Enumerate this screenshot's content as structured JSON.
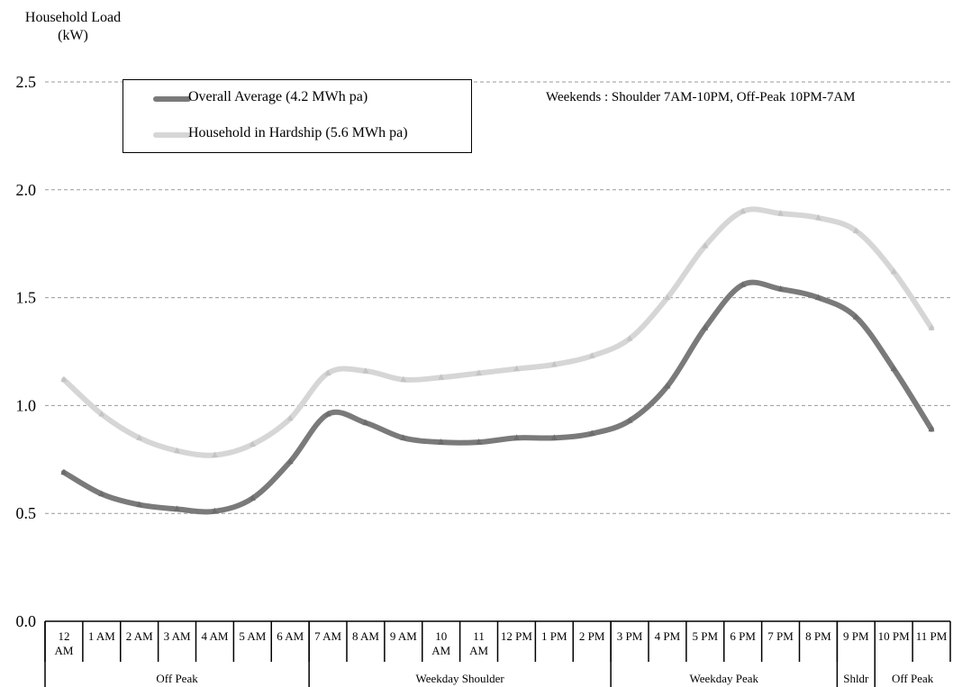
{
  "chart_data": {
    "type": "line",
    "ylabel_line1": "Household Load",
    "ylabel_line2": "(kW)",
    "ylim": [
      0,
      2.5
    ],
    "yticks": [
      "0.0",
      "0.5",
      "1.0",
      "1.5",
      "2.0",
      "2.5"
    ],
    "ytick_values": [
      0,
      0.5,
      1.0,
      1.5,
      2.0,
      2.5
    ],
    "grid": "horizontal dashed",
    "categories": [
      [
        "12",
        "AM"
      ],
      [
        "1 AM"
      ],
      [
        "2 AM"
      ],
      [
        "3 AM"
      ],
      [
        "4 AM"
      ],
      [
        "5 AM"
      ],
      [
        "6 AM"
      ],
      [
        "7 AM"
      ],
      [
        "8 AM"
      ],
      [
        "9 AM"
      ],
      [
        "10",
        "AM"
      ],
      [
        "11",
        "AM"
      ],
      [
        "12 PM"
      ],
      [
        "1 PM"
      ],
      [
        "2 PM"
      ],
      [
        "3 PM"
      ],
      [
        "4 PM"
      ],
      [
        "5 PM"
      ],
      [
        "6 PM"
      ],
      [
        "7 PM"
      ],
      [
        "8 PM"
      ],
      [
        "9 PM"
      ],
      [
        "10 PM"
      ],
      [
        "11 PM"
      ]
    ],
    "periods": [
      {
        "label": "Off Peak",
        "start": 0,
        "end": 6
      },
      {
        "label": "Weekday Shoulder",
        "start": 7,
        "end": 14
      },
      {
        "label": "Weekday Peak",
        "start": 15,
        "end": 20
      },
      {
        "label": "Shldr",
        "start": 21,
        "end": 21
      },
      {
        "label": "Off Peak",
        "start": 22,
        "end": 23
      }
    ],
    "series": [
      {
        "name": "Overall Average (4.2 MWh pa)",
        "color": "#7a7a7a",
        "values": [
          0.69,
          0.59,
          0.54,
          0.52,
          0.51,
          0.57,
          0.74,
          0.96,
          0.92,
          0.85,
          0.83,
          0.83,
          0.85,
          0.85,
          0.87,
          0.93,
          1.09,
          1.36,
          1.56,
          1.54,
          1.5,
          1.41,
          1.17,
          0.89
        ]
      },
      {
        "name": "Household in Hardship (5.6 MWh pa)",
        "color": "#d6d6d6",
        "values": [
          1.12,
          0.96,
          0.85,
          0.79,
          0.77,
          0.82,
          0.94,
          1.15,
          1.16,
          1.12,
          1.13,
          1.15,
          1.17,
          1.19,
          1.23,
          1.31,
          1.5,
          1.74,
          1.9,
          1.89,
          1.87,
          1.81,
          1.62,
          1.36
        ]
      }
    ],
    "legend_position": "top-left",
    "annotation": "Weekends : Shoulder 7AM-10PM, Off-Peak 10PM-7AM"
  }
}
